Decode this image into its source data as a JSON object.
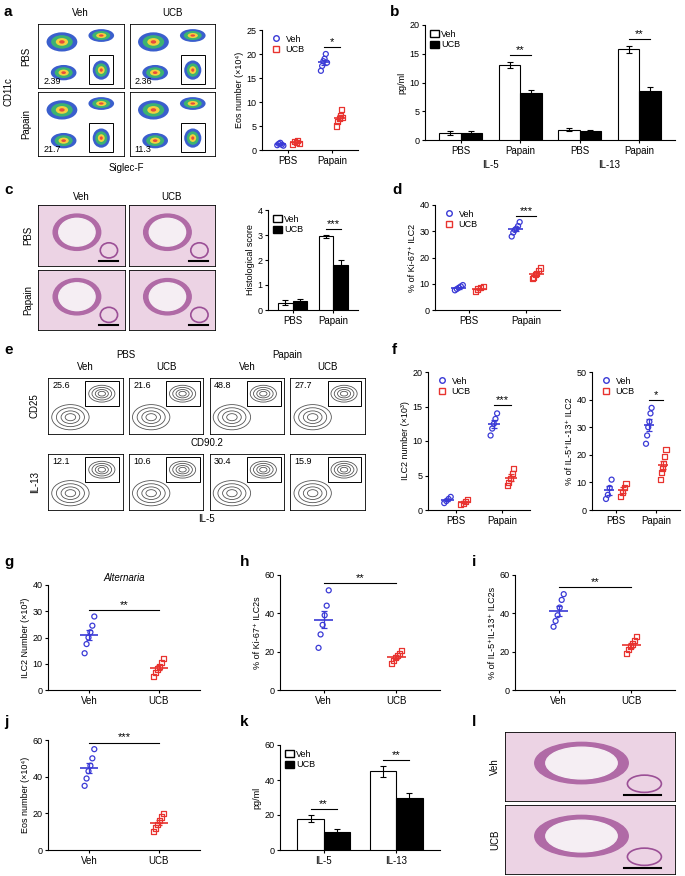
{
  "chart_data": [
    {
      "panel": "a",
      "type": "flow",
      "xlabel": "Siglec-F",
      "ylabel": "CD11c",
      "columns": [
        "Veh",
        "UCB"
      ],
      "rows": [
        {
          "name": "PBS",
          "gates": [
            2.39,
            2.36
          ]
        },
        {
          "name": "Papain",
          "gates": [
            21.7,
            11.3
          ]
        }
      ]
    },
    {
      "type": "scatter",
      "ylabel": "Eos number (×10⁴)",
      "categories": [
        "PBS",
        "Papain"
      ],
      "ylim": [
        0,
        25
      ],
      "yticks": [
        0,
        5,
        10,
        15,
        20,
        25
      ],
      "legend": "upper left",
      "series": [
        {
          "name": "Veh",
          "color": "#3a3ad6",
          "marker": "o",
          "values": [
            [
              1.0,
              1.3,
              1.5,
              1.1,
              0.9
            ],
            [
              16.5,
              17.5,
              18.5,
              19.0,
              20.0,
              18.2
            ]
          ],
          "mean": [
            1.2,
            18.3
          ],
          "error": [
            0.1,
            0.5
          ]
        },
        {
          "name": "UCB",
          "color": "#e8332f",
          "marker": "s",
          "values": [
            [
              1.2,
              1.8,
              1.5,
              2.0,
              1.3
            ],
            [
              5.0,
              6.0,
              6.5,
              7.2,
              8.5,
              6.8
            ]
          ],
          "mean": [
            1.6,
            6.7
          ],
          "error": [
            0.15,
            0.5
          ]
        }
      ],
      "annotations": [
        {
          "text": "*",
          "at": [
            1
          ]
        }
      ]
    },
    {
      "panel": "b",
      "type": "bar",
      "ylabel": "pg/ml",
      "categories": [
        "PBS",
        "Papain",
        "PBS",
        "Papain"
      ],
      "group_labels": [
        "IL-5",
        "IL-13"
      ],
      "ylim": [
        0,
        20
      ],
      "yticks": [
        0,
        5,
        10,
        15,
        20
      ],
      "legend": "upper left",
      "series": [
        {
          "name": "Veh",
          "color": "#ffffff",
          "values": [
            1.2,
            13.0,
            1.8,
            15.8
          ],
          "error": [
            0.3,
            0.5,
            0.3,
            0.6
          ]
        },
        {
          "name": "UCB",
          "color": "#000000",
          "values": [
            1.2,
            8.2,
            1.5,
            8.5
          ],
          "error": [
            0.3,
            0.5,
            0.2,
            0.7
          ]
        }
      ],
      "annotations": [
        {
          "text": "**",
          "at": [
            1
          ]
        },
        {
          "text": "**",
          "at": [
            3
          ]
        }
      ]
    },
    {
      "panel": "c",
      "type": "histology",
      "rows": [
        "PBS",
        "Papain"
      ],
      "columns": [
        "Veh",
        "UCB"
      ]
    },
    {
      "type": "bar",
      "ylabel": "Histological score",
      "categories": [
        "PBS",
        "Papain"
      ],
      "ylim": [
        0,
        4
      ],
      "yticks": [
        0,
        1,
        2,
        3,
        4
      ],
      "legend": "upper left",
      "series": [
        {
          "name": "Veh",
          "color": "#ffffff",
          "values": [
            0.3,
            2.95
          ],
          "error": [
            0.1,
            0.05
          ]
        },
        {
          "name": "UCB",
          "color": "#000000",
          "values": [
            0.35,
            1.8
          ],
          "error": [
            0.08,
            0.2
          ]
        }
      ],
      "annotations": [
        {
          "text": "***",
          "at": [
            1
          ]
        }
      ]
    },
    {
      "panel": "d",
      "type": "scatter",
      "ylabel": "% of Ki-67⁺ ILC2",
      "categories": [
        "PBS",
        "Papain"
      ],
      "ylim": [
        0,
        40
      ],
      "yticks": [
        0,
        10,
        20,
        30,
        40
      ],
      "legend": "upper left",
      "series": [
        {
          "name": "Veh",
          "color": "#3a3ad6",
          "marker": "o",
          "values": [
            [
              7.5,
              8.0,
              8.5,
              9.0,
              9.5
            ],
            [
              28.0,
              29.5,
              30.5,
              31.0,
              32.0,
              33.5
            ]
          ],
          "mean": [
            8.5,
            30.8
          ],
          "error": [
            0.35,
            0.8
          ]
        },
        {
          "name": "UCB",
          "color": "#e8332f",
          "marker": "s",
          "values": [
            [
              7.0,
              8.0,
              8.5,
              9.0
            ],
            [
              12.0,
              12.5,
              13.5,
              14.0,
              15.0,
              16.0
            ]
          ],
          "mean": [
            8.1,
            13.8
          ],
          "error": [
            0.4,
            0.6
          ]
        }
      ],
      "annotations": [
        {
          "text": "***",
          "at": [
            1
          ]
        }
      ]
    },
    {
      "panel": "e",
      "type": "flow",
      "column_groups": [
        "PBS",
        "Papain"
      ],
      "columns": [
        "Veh",
        "UCB",
        "Veh",
        "UCB"
      ],
      "rows": [
        {
          "xlabel": "CD90.2",
          "ylabel": "CD25",
          "gates": [
            25.6,
            21.6,
            48.8,
            27.7
          ]
        },
        {
          "xlabel": "IL-5",
          "ylabel": "IL-13",
          "gates": [
            12.1,
            10.6,
            30.4,
            15.9
          ]
        }
      ]
    },
    {
      "panel": "f",
      "type": "scatter",
      "ylabel": "ILC2 number (×10³)",
      "categories": [
        "PBS",
        "Papain"
      ],
      "ylim": [
        0,
        20
      ],
      "yticks": [
        0,
        5,
        10,
        15,
        20
      ],
      "legend": "upper left",
      "series": [
        {
          "name": "Veh",
          "color": "#3a3ad6",
          "marker": "o",
          "values": [
            [
              1.0,
              1.3,
              1.6,
              1.9
            ],
            [
              10.8,
              11.8,
              12.5,
              13.2,
              14.0
            ]
          ],
          "mean": [
            1.45,
            12.5
          ],
          "error": [
            0.2,
            0.55
          ]
        },
        {
          "name": "UCB",
          "color": "#e8332f",
          "marker": "s",
          "values": [
            [
              0.8,
              1.0,
              1.3,
              1.5
            ],
            [
              3.5,
              4.0,
              4.6,
              5.3,
              6.0
            ]
          ],
          "mean": [
            1.15,
            4.7
          ],
          "error": [
            0.15,
            0.45
          ]
        }
      ],
      "annotations": [
        {
          "text": "***",
          "at": [
            1
          ]
        }
      ]
    },
    {
      "type": "scatter",
      "ylabel": "% of IL-5⁺IL-13⁺ ILC2",
      "categories": [
        "PBS",
        "Papain"
      ],
      "ylim": [
        0,
        50
      ],
      "yticks": [
        0,
        10,
        20,
        30,
        40,
        50
      ],
      "legend": "upper left",
      "series": [
        {
          "name": "Veh",
          "color": "#3a3ad6",
          "marker": "o",
          "values": [
            [
              4.0,
              5.5,
              8.0,
              11.0
            ],
            [
              24.0,
              27.0,
              30.0,
              32.0,
              35.0,
              37.0
            ]
          ],
          "mean": [
            7.1,
            30.8
          ],
          "error": [
            1.5,
            2.0
          ]
        },
        {
          "name": "UCB",
          "color": "#e8332f",
          "marker": "s",
          "values": [
            [
              5.0,
              6.5,
              8.0,
              9.5
            ],
            [
              11.0,
              13.5,
              15.0,
              17.0,
              19.5,
              22.0
            ]
          ],
          "mean": [
            7.3,
            16.3
          ],
          "error": [
            1.0,
            1.6
          ]
        }
      ],
      "annotations": [
        {
          "text": "*",
          "at": [
            1
          ]
        }
      ]
    },
    {
      "panel": "g",
      "type": "scatter",
      "title": "Alternaria",
      "ylabel": "ILC2 Number (×10³)",
      "categories": [
        "Veh",
        "UCB"
      ],
      "ylim": [
        0,
        40
      ],
      "yticks": [
        0,
        10,
        20,
        30,
        40
      ],
      "series": [
        {
          "name": "Veh",
          "color": "#3a3ad6",
          "marker": "o",
          "values": [
            [
              14.0,
              17.5,
              20.0,
              22.0,
              24.5,
              28.0
            ],
            null
          ],
          "mean": [
            21.0,
            null
          ],
          "error": [
            2.0,
            null
          ]
        },
        {
          "name": "UCB",
          "color": "#e8332f",
          "marker": "s",
          "values": [
            null,
            [
              5.0,
              6.5,
              8.0,
              9.0,
              10.5,
              12.0
            ]
          ],
          "mean": [
            null,
            8.5
          ],
          "error": [
            null,
            1.0
          ]
        }
      ],
      "annotations": [
        {
          "text": "**",
          "at": [
            0,
            1
          ]
        }
      ]
    },
    {
      "panel": "h",
      "type": "scatter",
      "ylabel": "% of Ki-67⁺ ILC2s",
      "categories": [
        "Veh",
        "UCB"
      ],
      "ylim": [
        0,
        60
      ],
      "yticks": [
        0,
        20,
        40,
        60
      ],
      "series": [
        {
          "name": "Veh",
          "color": "#3a3ad6",
          "marker": "o",
          "values": [
            [
              22.0,
              29.0,
              34.0,
              39.0,
              44.0,
              52.0
            ],
            null
          ],
          "mean": [
            36.7,
            null
          ],
          "error": [
            4.3,
            null
          ]
        },
        {
          "name": "UCB",
          "color": "#e8332f",
          "marker": "s",
          "values": [
            null,
            [
              14.0,
              15.5,
              17.0,
              18.0,
              19.0,
              20.5
            ]
          ],
          "mean": [
            null,
            17.3
          ],
          "error": [
            null,
            1.0
          ]
        }
      ],
      "annotations": [
        {
          "text": "**",
          "at": [
            0,
            1
          ]
        }
      ]
    },
    {
      "panel": "i",
      "type": "scatter",
      "ylabel": "% of IL-5⁺IL-13⁺ ILC2s",
      "categories": [
        "Veh",
        "UCB"
      ],
      "ylim": [
        0,
        60
      ],
      "yticks": [
        0,
        20,
        40,
        60
      ],
      "series": [
        {
          "name": "Veh",
          "color": "#3a3ad6",
          "marker": "o",
          "values": [
            [
              33.0,
              36.0,
              39.0,
              43.0,
              47.0,
              50.0
            ],
            null
          ],
          "mean": [
            41.3,
            null
          ],
          "error": [
            2.7,
            null
          ]
        },
        {
          "name": "UCB",
          "color": "#e8332f",
          "marker": "s",
          "values": [
            null,
            [
              19.0,
              21.0,
              22.5,
              24.0,
              26.0,
              28.0
            ]
          ],
          "mean": [
            null,
            23.4
          ],
          "error": [
            null,
            1.3
          ]
        }
      ],
      "annotations": [
        {
          "text": "**",
          "at": [
            0,
            1
          ]
        }
      ]
    },
    {
      "panel": "j",
      "type": "scatter",
      "ylabel": "Eos number (×10⁴)",
      "categories": [
        "Veh",
        "UCB"
      ],
      "ylim": [
        0,
        60
      ],
      "yticks": [
        0,
        20,
        40,
        60
      ],
      "series": [
        {
          "name": "Veh",
          "color": "#3a3ad6",
          "marker": "o",
          "values": [
            [
              35.0,
              39.0,
              43.0,
              46.0,
              50.0,
              55.0
            ],
            null
          ],
          "mean": [
            44.7,
            null
          ],
          "error": [
            2.9,
            null
          ]
        },
        {
          "name": "UCB",
          "color": "#e8332f",
          "marker": "s",
          "values": [
            null,
            [
              10.0,
              12.0,
              14.0,
              16.0,
              18.0,
              20.0
            ]
          ],
          "mean": [
            null,
            15.0
          ],
          "error": [
            null,
            1.5
          ]
        }
      ],
      "annotations": [
        {
          "text": "***",
          "at": [
            0,
            1
          ]
        }
      ]
    },
    {
      "panel": "k",
      "type": "bar",
      "ylabel": "pg/ml",
      "categories": [
        "IL-5",
        "IL-13"
      ],
      "ylim": [
        0,
        60
      ],
      "yticks": [
        0,
        20,
        40,
        60
      ],
      "legend": "upper left",
      "series": [
        {
          "name": "Veh",
          "color": "#ffffff",
          "values": [
            18.0,
            45.0
          ],
          "error": [
            2.0,
            3.0
          ]
        },
        {
          "name": "UCB",
          "color": "#000000",
          "values": [
            10.5,
            30.0
          ],
          "error": [
            1.5,
            2.5
          ]
        }
      ],
      "annotations": [
        {
          "text": "**",
          "at": [
            0
          ]
        },
        {
          "text": "**",
          "at": [
            1
          ]
        }
      ]
    },
    {
      "panel": "l",
      "type": "histology",
      "rows": [
        "Veh",
        "UCB"
      ],
      "columns": []
    }
  ]
}
